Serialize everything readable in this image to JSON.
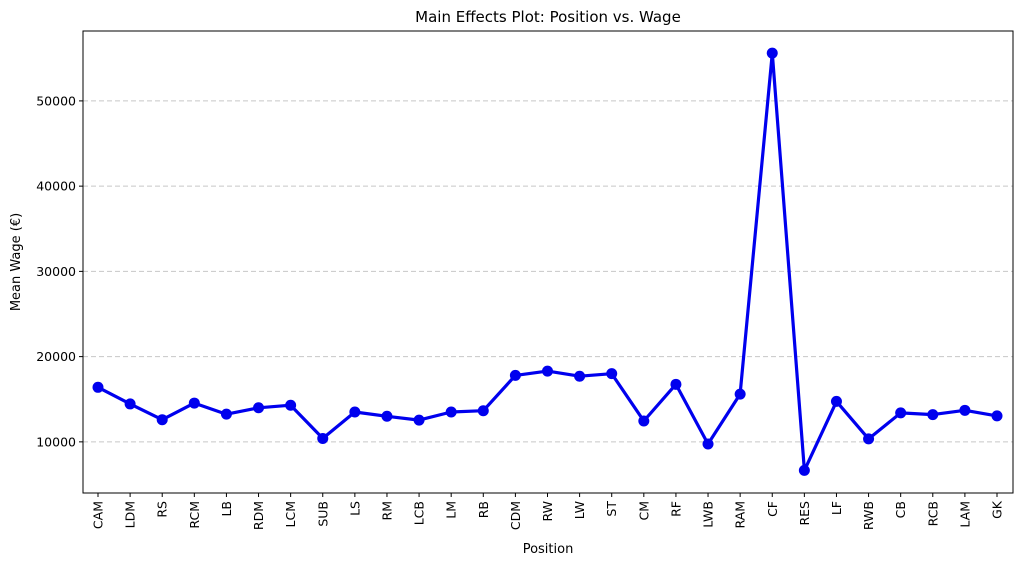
{
  "chart_data": {
    "type": "line",
    "title": "Main Effects Plot: Position vs. Wage",
    "xlabel": "Position",
    "ylabel": "Mean Wage (€)",
    "categories": [
      "CAM",
      "LDM",
      "RS",
      "RCM",
      "LB",
      "RDM",
      "LCM",
      "SUB",
      "LS",
      "RM",
      "LCB",
      "LM",
      "RB",
      "CDM",
      "RW",
      "LW",
      "ST",
      "CM",
      "RF",
      "LWB",
      "RAM",
      "CF",
      "RES",
      "LF",
      "RWB",
      "CB",
      "RCB",
      "LAM",
      "GK"
    ],
    "series": [
      {
        "values": [
          16400,
          14450,
          12600,
          14550,
          13250,
          14000,
          14300,
          10400,
          13500,
          13000,
          12550,
          13500,
          13650,
          17800,
          18300,
          17700,
          18000,
          12450,
          16750,
          9750,
          15600,
          55600,
          6650,
          14750,
          10350,
          13400,
          13200,
          13700,
          13050
        ]
      }
    ],
    "ylim": [
      4000,
      58200
    ],
    "yticks": [
      10000,
      20000,
      30000,
      40000,
      50000
    ],
    "grid": "y-dashed",
    "line_color": "#0000ee"
  }
}
